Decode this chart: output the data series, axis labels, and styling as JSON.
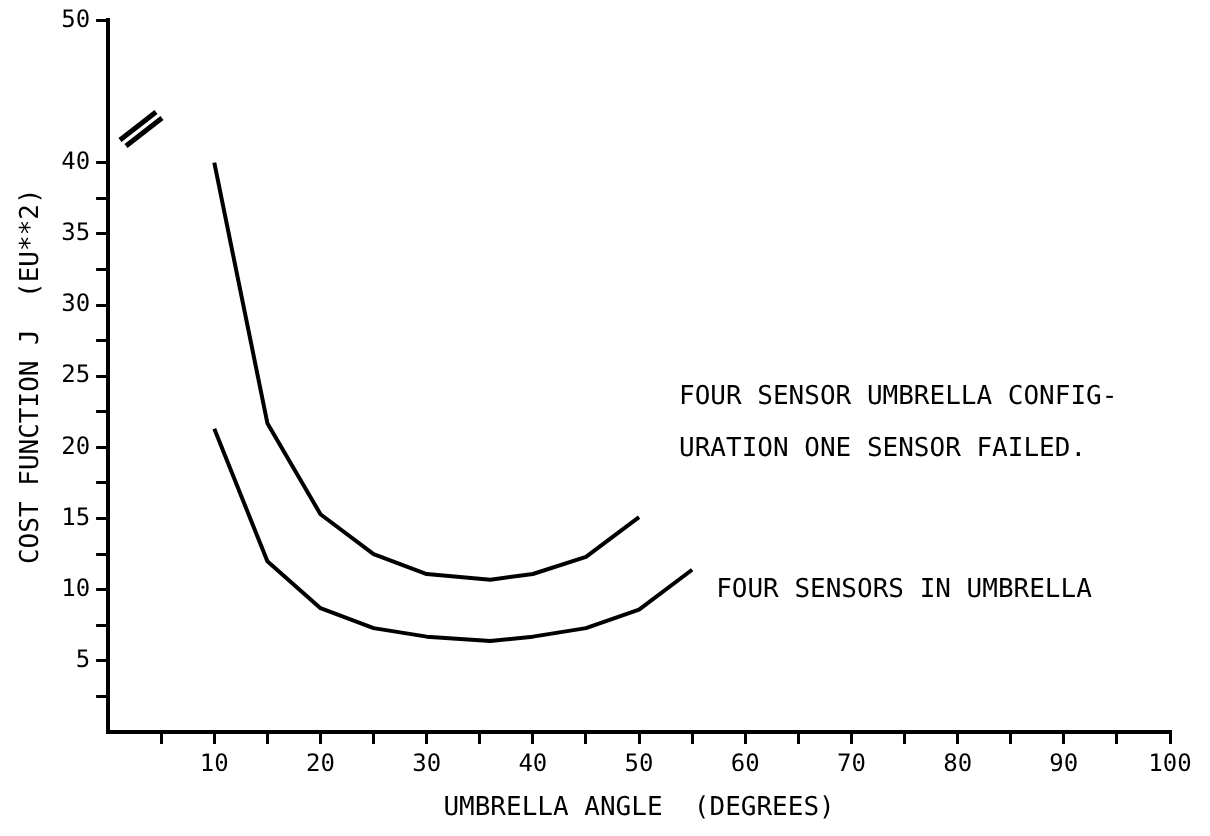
{
  "chart_data": {
    "type": "line",
    "xlabel": "UMBRELLA ANGLE  (DEGREES)",
    "ylabel": "COST FUNCTION J  (EU**2)",
    "xlim": [
      0,
      100
    ],
    "xticks": [
      {
        "value": 5,
        "label": null
      },
      10,
      {
        "value": 15,
        "label": null
      },
      20,
      {
        "value": 25,
        "label": null
      },
      30,
      {
        "value": 35,
        "label": null
      },
      40,
      {
        "value": 45,
        "label": null
      },
      50,
      {
        "value": 55,
        "label": null
      },
      60,
      {
        "value": 65,
        "label": null
      },
      70,
      {
        "value": 75,
        "label": null
      },
      80,
      {
        "value": 85,
        "label": null
      },
      90,
      {
        "value": 95,
        "label": null
      },
      100
    ],
    "ylim": [
      0,
      50
    ],
    "yticks": [
      {
        "value": 2.5,
        "label": null
      },
      5,
      {
        "value": 7.5,
        "label": null
      },
      10,
      {
        "value": 12.5,
        "label": null
      },
      15,
      {
        "value": 17.5,
        "label": null
      },
      20,
      {
        "value": 22.5,
        "label": null
      },
      25,
      {
        "value": 27.5,
        "label": null
      },
      30,
      {
        "value": 32.5,
        "label": null
      },
      35,
      {
        "value": 37.5,
        "label": null
      },
      40,
      50
    ],
    "grid": false,
    "legend": false,
    "marker": "none",
    "line_style": "solid",
    "series": [
      {
        "name": "FOUR SENSOR UMBRELLA CONFIG- URATION    ONE SENSOR FAILED.",
        "color": "#000000",
        "x": [
          10,
          15,
          20,
          25,
          30,
          36,
          40,
          45,
          50
        ],
        "values": [
          40,
          21.7,
          15.3,
          12.5,
          11.1,
          10.7,
          11.1,
          12.3,
          15.1
        ]
      },
      {
        "name": "FOUR SENSORS IN UMBRELLA",
        "color": "#000000",
        "x": [
          10,
          15,
          20,
          25,
          30,
          36,
          40,
          45,
          50,
          55
        ],
        "values": [
          21.3,
          12,
          8.7,
          7.3,
          6.7,
          6.4,
          6.7,
          7.3,
          8.6,
          11.4
        ]
      }
    ]
  }
}
